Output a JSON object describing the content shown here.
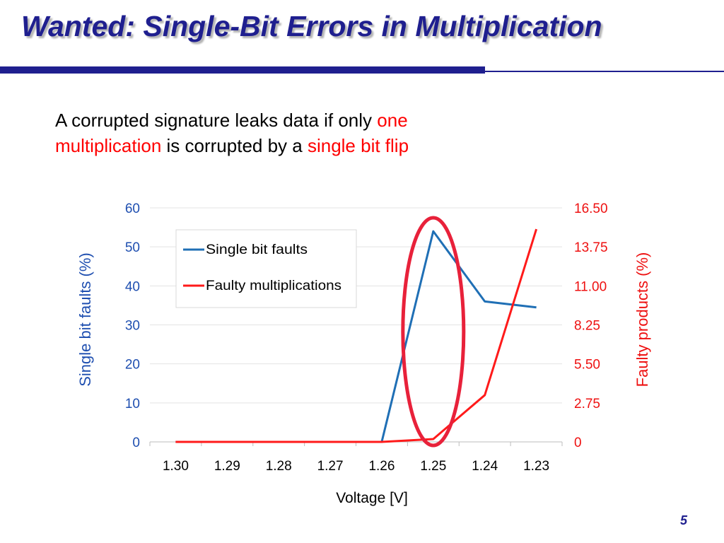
{
  "slide": {
    "title": "Wanted: Single-Bit Errors in Multiplication",
    "subtitle": {
      "part1": "A corrupted signature leaks data if only ",
      "part2": "one",
      "part3": "multiplication",
      "part4": " is corrupted by a ",
      "part5": "single bit flip"
    },
    "page_number": "5"
  },
  "colors": {
    "title": "#1f1f8f",
    "series_blue": "#1f6fb5",
    "series_red": "#ff1a1a",
    "highlight_ellipse": "#e8213a",
    "left_axis_text": "#1f4fb0",
    "right_axis_text": "#ee1111"
  },
  "chart_data": {
    "type": "line",
    "categories": [
      "1.30",
      "1.29",
      "1.28",
      "1.27",
      "1.26",
      "1.25",
      "1.24",
      "1.23"
    ],
    "xlabel": "Voltage [V]",
    "ylabel": "Single bit faults (%)",
    "y2label": "Faulty products (%)",
    "ylim": [
      0,
      60
    ],
    "y2lim": [
      0,
      16.5
    ],
    "yticks": [
      "0",
      "10",
      "20",
      "30",
      "40",
      "50",
      "60"
    ],
    "y2ticks": [
      "0",
      "2.75",
      "5.50",
      "8.25",
      "11.00",
      "13.75",
      "16.50"
    ],
    "series": [
      {
        "name": "Single bit faults",
        "axis": "left",
        "values": [
          0,
          0,
          0,
          0,
          0,
          54,
          36,
          34.5
        ]
      },
      {
        "name": "Faulty multiplications",
        "axis": "right",
        "values": [
          0,
          0,
          0,
          0,
          0,
          0.2,
          3.3,
          15
        ]
      }
    ],
    "legend": "top-left inside plot",
    "highlight": "ellipse around 1.25",
    "grid": "horizontal"
  }
}
